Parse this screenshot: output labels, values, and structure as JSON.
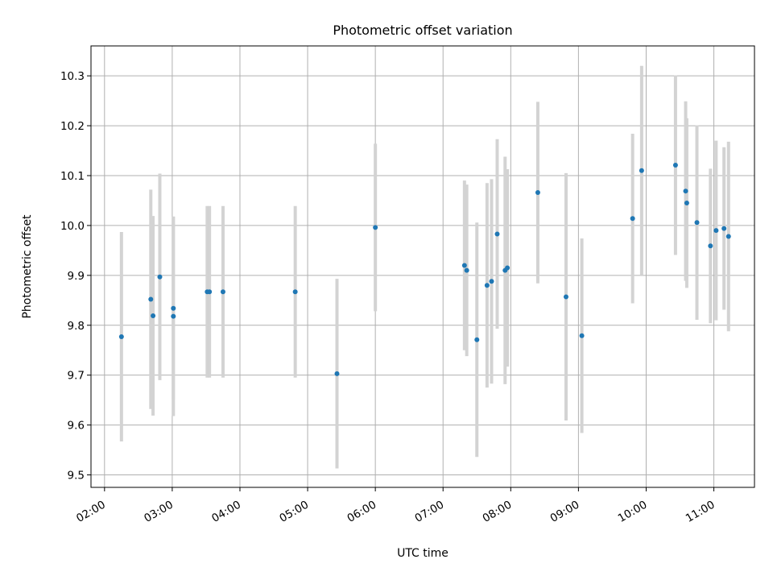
{
  "chart_data": {
    "type": "scatter",
    "title": "Photometric offset variation",
    "xlabel": "UTC time",
    "ylabel": "Photometric offset",
    "x_axis_type": "time",
    "xlim": [
      "01:48",
      "11:36"
    ],
    "ylim": [
      9.475,
      10.36
    ],
    "grid": true,
    "x_ticks": [
      "02:00",
      "03:00",
      "04:00",
      "05:00",
      "06:00",
      "07:00",
      "08:00",
      "09:00",
      "10:00",
      "11:00"
    ],
    "y_ticks": [
      9.5,
      9.6,
      9.7,
      9.8,
      9.9,
      10.0,
      10.1,
      10.2,
      10.3
    ],
    "point_color": "#1f77b4",
    "errorbar_color": "#d3d3d3",
    "points": [
      {
        "x": "02:15",
        "y": 9.777,
        "yerr": 0.21
      },
      {
        "x": "02:41",
        "y": 9.852,
        "yerr": 0.22
      },
      {
        "x": "02:43",
        "y": 9.819,
        "yerr": 0.2
      },
      {
        "x": "02:49",
        "y": 9.897,
        "yerr": 0.207
      },
      {
        "x": "03:01",
        "y": 9.834,
        "yerr": 0.183
      },
      {
        "x": "03:01",
        "y": 9.818,
        "yerr": 0.2
      },
      {
        "x": "03:31",
        "y": 9.867,
        "yerr": 0.172
      },
      {
        "x": "03:33",
        "y": 9.867,
        "yerr": 0.172
      },
      {
        "x": "03:45",
        "y": 9.867,
        "yerr": 0.172
      },
      {
        "x": "04:49",
        "y": 9.867,
        "yerr": 0.172
      },
      {
        "x": "05:26",
        "y": 9.703,
        "yerr": 0.19
      },
      {
        "x": "06:00",
        "y": 9.996,
        "yerr": 0.168
      },
      {
        "x": "07:19",
        "y": 9.92,
        "yerr": 0.17
      },
      {
        "x": "07:21",
        "y": 9.91,
        "yerr": 0.172
      },
      {
        "x": "07:30",
        "y": 9.771,
        "yerr": 0.235
      },
      {
        "x": "07:39",
        "y": 9.88,
        "yerr": 0.205
      },
      {
        "x": "07:43",
        "y": 9.888,
        "yerr": 0.205
      },
      {
        "x": "07:48",
        "y": 9.983,
        "yerr": 0.19
      },
      {
        "x": "07:55",
        "y": 9.91,
        "yerr": 0.228
      },
      {
        "x": "07:57",
        "y": 9.915,
        "yerr": 0.198
      },
      {
        "x": "08:24",
        "y": 10.066,
        "yerr": 0.182
      },
      {
        "x": "08:49",
        "y": 9.857,
        "yerr": 0.248
      },
      {
        "x": "09:03",
        "y": 9.779,
        "yerr": 0.195
      },
      {
        "x": "09:48",
        "y": 10.014,
        "yerr": 0.17
      },
      {
        "x": "09:56",
        "y": 10.11,
        "yerr": 0.21
      },
      {
        "x": "10:26",
        "y": 10.121,
        "yerr": 0.18
      },
      {
        "x": "10:35",
        "y": 10.069,
        "yerr": 0.18
      },
      {
        "x": "10:36",
        "y": 10.045,
        "yerr": 0.17
      },
      {
        "x": "10:45",
        "y": 10.006,
        "yerr": 0.195
      },
      {
        "x": "10:57",
        "y": 9.959,
        "yerr": 0.155
      },
      {
        "x": "11:02",
        "y": 9.99,
        "yerr": 0.18
      },
      {
        "x": "11:09",
        "y": 9.994,
        "yerr": 0.163
      },
      {
        "x": "11:13",
        "y": 9.978,
        "yerr": 0.19
      }
    ]
  }
}
